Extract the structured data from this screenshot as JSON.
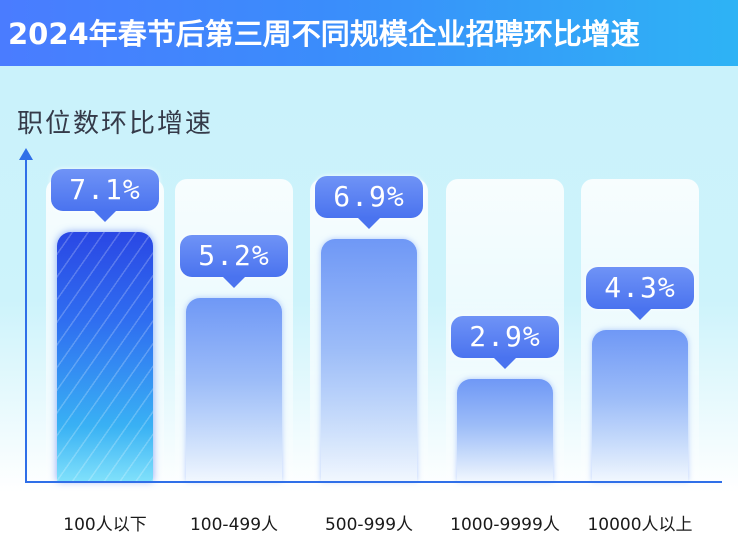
{
  "title": "2024年春节后第三周不同规模企业招聘环比增速",
  "chart_data": {
    "type": "bar",
    "title": "2024年春节后第三周不同规模企业招聘环比增速",
    "ylabel": "职位数环比增速",
    "xlabel": "",
    "categories": [
      "100人以下",
      "100-499人",
      "500-999人",
      "1000-9999人",
      "10000人以上"
    ],
    "values": [
      7.1,
      5.2,
      6.9,
      2.9,
      4.3
    ],
    "value_labels": [
      "7.1%",
      "5.2%",
      "6.9%",
      "2.9%",
      "4.3%"
    ],
    "unit": "%",
    "highlight_index": 0,
    "ylim": [
      0,
      8.6
    ],
    "grid": false,
    "colors": {
      "highlight_bar": "#2f6df0",
      "bar": "#7fa3f7",
      "label_bubble": "#5a82f2",
      "axis": "#2f6fe8",
      "title_bar": "#4a7cff"
    }
  }
}
